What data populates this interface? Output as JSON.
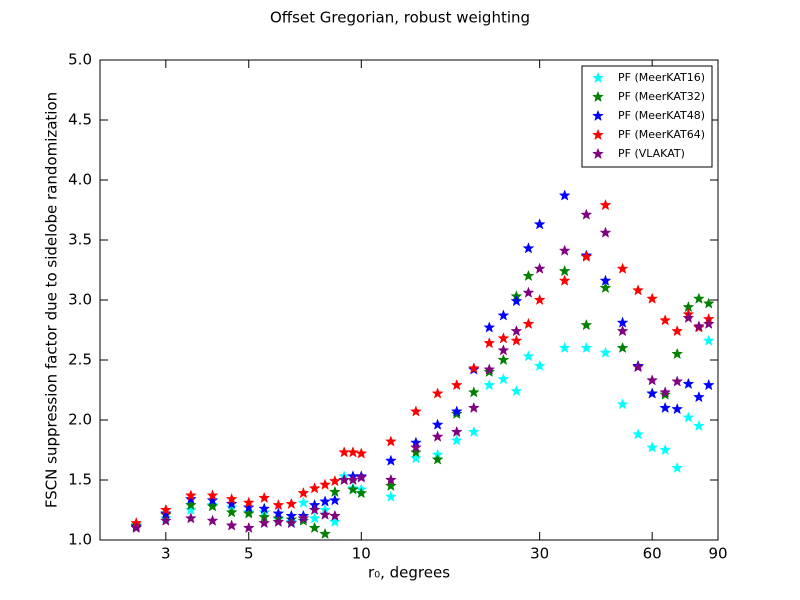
{
  "chart_data": {
    "type": "scatter",
    "title": "Offset Gregorian, robust weighting",
    "xlabel": "r₀, degrees",
    "ylabel": "FSCN suppression factor due to sidelobe randomization",
    "xscale": "log",
    "xlim": [
      2,
      90
    ],
    "ylim": [
      1,
      5
    ],
    "xticks": [
      3,
      5,
      10,
      30,
      60,
      90
    ],
    "yticks": [
      {
        "value": 1,
        "label": "1.0"
      },
      1.5,
      {
        "value": 2,
        "label": "2.0"
      },
      2.5,
      {
        "value": 3,
        "label": "3.0"
      },
      3.5,
      {
        "value": 4,
        "label": "4.0"
      },
      4.5,
      {
        "value": 5,
        "label": "5.0"
      }
    ],
    "grid": false,
    "legend": "upper right",
    "marker": "star",
    "x": [
      2.5,
      3,
      3.5,
      4,
      4.5,
      5,
      5.5,
      6,
      6.5,
      7,
      7.5,
      8,
      8.5,
      9,
      9.5,
      10,
      12,
      14,
      16,
      18,
      20,
      22,
      24,
      26,
      28,
      30,
      35,
      40,
      45,
      50,
      55,
      60,
      65,
      70,
      75,
      80,
      85
    ],
    "series": [
      {
        "name": "PF (MeerKAT16)",
        "color": "#00ffff",
        "values": [
          1.12,
          1.18,
          1.25,
          1.29,
          1.27,
          1.23,
          1.23,
          1.17,
          1.15,
          1.31,
          1.18,
          1.25,
          1.15,
          1.53,
          1.43,
          1.42,
          1.36,
          1.68,
          1.71,
          1.83,
          1.9,
          2.29,
          2.34,
          2.24,
          2.53,
          2.45,
          2.6,
          2.6,
          2.56,
          2.13,
          1.88,
          1.77,
          1.75,
          1.6,
          2.02,
          1.95,
          2.66
        ]
      },
      {
        "name": "PF (MeerKAT32)",
        "color": "#008000",
        "values": [
          1.12,
          1.21,
          1.29,
          1.28,
          1.23,
          1.22,
          1.19,
          1.18,
          1.17,
          1.16,
          1.1,
          1.05,
          1.4,
          1.5,
          1.42,
          1.39,
          1.45,
          1.73,
          1.67,
          2.05,
          2.23,
          2.4,
          2.5,
          3.03,
          3.2,
          null,
          3.24,
          2.79,
          3.1,
          2.6,
          null,
          2.22,
          2.21,
          2.55,
          2.94,
          3.01,
          2.97
        ]
      },
      {
        "name": "PF (MeerKAT48)",
        "color": "#0000ff",
        "values": [
          1.11,
          1.22,
          1.34,
          1.33,
          1.3,
          1.27,
          1.26,
          1.22,
          1.2,
          1.2,
          1.29,
          1.32,
          1.33,
          1.5,
          1.53,
          1.53,
          1.66,
          1.81,
          1.96,
          2.07,
          2.42,
          2.77,
          2.87,
          2.99,
          3.43,
          3.63,
          3.87,
          3.37,
          3.16,
          2.81,
          2.45,
          2.22,
          2.1,
          2.09,
          2.3,
          2.19,
          2.29
        ]
      },
      {
        "name": "PF (MeerKAT64)",
        "color": "#ff0000",
        "values": [
          1.14,
          1.25,
          1.37,
          1.37,
          1.34,
          1.31,
          1.35,
          1.29,
          1.3,
          1.39,
          1.43,
          1.46,
          1.49,
          1.73,
          1.73,
          1.72,
          1.82,
          2.07,
          2.22,
          2.29,
          2.43,
          2.64,
          2.68,
          2.66,
          2.8,
          3.0,
          3.16,
          3.36,
          3.79,
          3.26,
          3.08,
          3.01,
          2.83,
          2.74,
          2.88,
          2.77,
          2.84
        ]
      },
      {
        "name": "PF (VLAKAT)",
        "color": "#800080",
        "values": [
          1.1,
          1.16,
          1.18,
          1.16,
          1.12,
          1.1,
          1.14,
          1.15,
          1.14,
          1.18,
          1.25,
          1.21,
          1.2,
          1.5,
          1.5,
          1.52,
          1.5,
          1.77,
          1.86,
          1.9,
          2.1,
          2.42,
          2.58,
          2.74,
          3.06,
          3.26,
          3.41,
          3.71,
          3.56,
          2.74,
          2.44,
          2.33,
          2.23,
          2.32,
          2.85,
          2.78,
          2.8
        ]
      }
    ]
  }
}
